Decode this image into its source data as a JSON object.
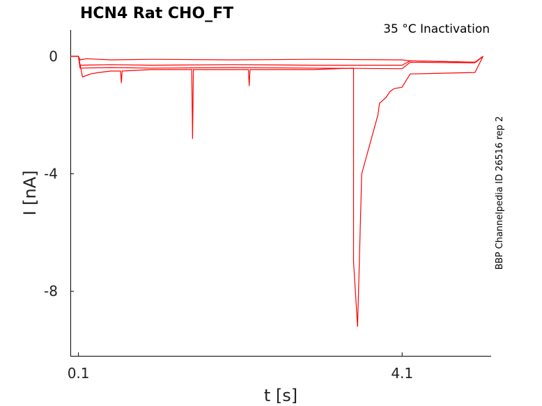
{
  "chart_data": {
    "type": "line",
    "title": "HCN4  Rat  CHO_FT",
    "subtitle": "35 °C  Inactivation",
    "xlabel": "t [s]",
    "ylabel": "I [nA]",
    "side_note": "BBP Channelpedia ID 26516 rep 2",
    "xlim": [
      0.0,
      5.2
    ],
    "ylim": [
      -10.2,
      0.9
    ],
    "xticks": [
      0.1,
      4.1
    ],
    "xtick_labels": [
      "0.1",
      "4.1"
    ],
    "yticks": [
      0,
      -4,
      -8
    ],
    "ytick_labels": [
      "0",
      "-4",
      "-8"
    ],
    "grid": false,
    "series_color": "#ff0000",
    "series": [
      {
        "x": [
          0.0,
          0.1,
          0.12,
          0.2,
          0.5,
          1.0,
          2.0,
          3.0,
          4.1,
          4.2,
          5.0,
          5.1
        ],
        "y": [
          0.0,
          0.0,
          -0.12,
          -0.08,
          -0.12,
          -0.1,
          -0.12,
          -0.1,
          -0.12,
          -0.15,
          -0.2,
          0.0
        ]
      },
      {
        "x": [
          0.0,
          0.1,
          0.12,
          0.5,
          1.0,
          2.0,
          3.0,
          4.1,
          4.2,
          5.0,
          5.1
        ],
        "y": [
          0.0,
          0.0,
          -0.3,
          -0.28,
          -0.3,
          -0.28,
          -0.3,
          -0.3,
          -0.15,
          -0.2,
          0.0
        ]
      },
      {
        "x": [
          0.0,
          0.1,
          0.12,
          0.5,
          1.0,
          2.0,
          3.0,
          4.1,
          4.2,
          5.0,
          5.1
        ],
        "y": [
          0.0,
          0.0,
          -0.4,
          -0.38,
          -0.4,
          -0.38,
          -0.4,
          -0.42,
          -0.2,
          -0.22,
          0.0
        ]
      },
      {
        "x": [
          0.0,
          0.1,
          0.15,
          0.25,
          0.35,
          0.5,
          0.62,
          0.63,
          0.64,
          1.0,
          1.5,
          1.51,
          1.52,
          2.0,
          2.2,
          2.21,
          2.22,
          2.5,
          3.0,
          3.5,
          3.5,
          3.55,
          3.6,
          3.8,
          3.82,
          3.9,
          3.95,
          4.0,
          4.1,
          4.2,
          5.0,
          5.1
        ],
        "y": [
          0.0,
          0.0,
          -0.7,
          -0.6,
          -0.55,
          -0.5,
          -0.5,
          -0.9,
          -0.5,
          -0.45,
          -0.45,
          -2.8,
          -0.45,
          -0.45,
          -0.45,
          -1.0,
          -0.45,
          -0.45,
          -0.45,
          -0.4,
          -7.0,
          -9.2,
          -4.0,
          -2.0,
          -1.6,
          -1.4,
          -1.2,
          -1.1,
          -1.05,
          -0.6,
          -0.55,
          0.0
        ]
      }
    ]
  }
}
